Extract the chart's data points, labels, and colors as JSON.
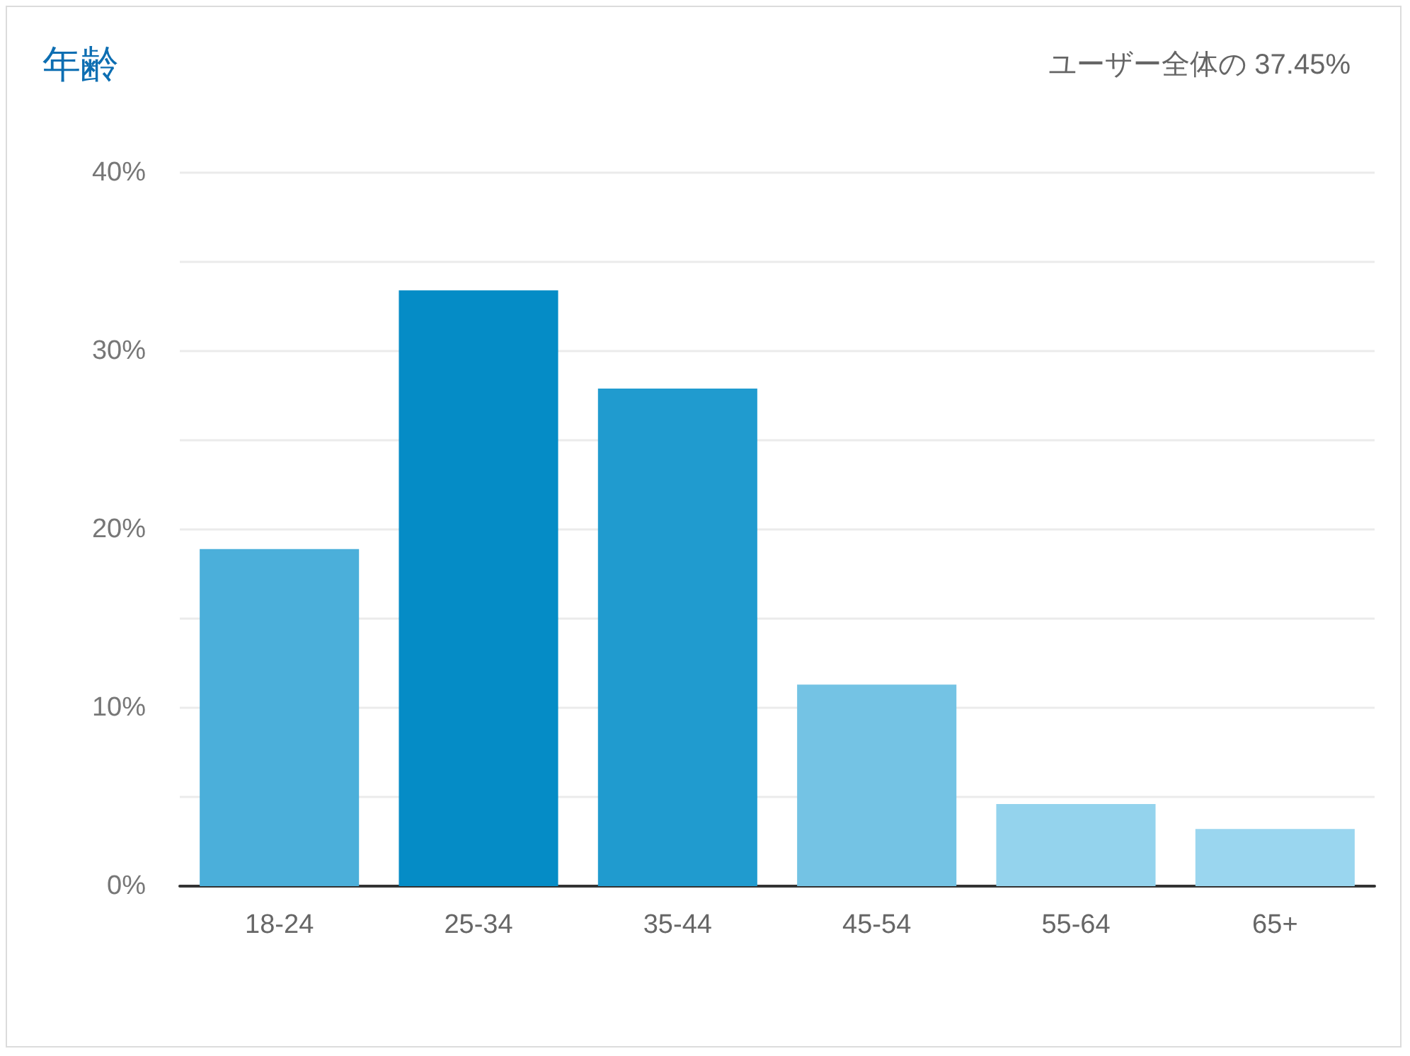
{
  "chart_data": {
    "type": "bar",
    "title": "年齢",
    "subtitle": "ユーザー全体の 37.45%",
    "categories": [
      "18-24",
      "25-34",
      "35-44",
      "45-54",
      "55-64",
      "65+"
    ],
    "values": [
      18.9,
      33.4,
      27.9,
      11.3,
      4.6,
      3.2
    ],
    "colors": [
      "#4bafda",
      "#058cc6",
      "#209bcf",
      "#74c3e4",
      "#94d3ed",
      "#9ad6ef"
    ],
    "ylim": [
      0,
      40
    ],
    "yticks": [
      {
        "value": 0,
        "label": "0%"
      },
      {
        "value": 5,
        "label": null
      },
      {
        "value": 10,
        "label": "10%"
      },
      {
        "value": 15,
        "label": null
      },
      {
        "value": 20,
        "label": "20%"
      },
      {
        "value": 25,
        "label": null
      },
      {
        "value": 30,
        "label": "30%"
      },
      {
        "value": 35,
        "label": null
      },
      {
        "value": 40,
        "label": "40%"
      }
    ],
    "grid": "y"
  }
}
